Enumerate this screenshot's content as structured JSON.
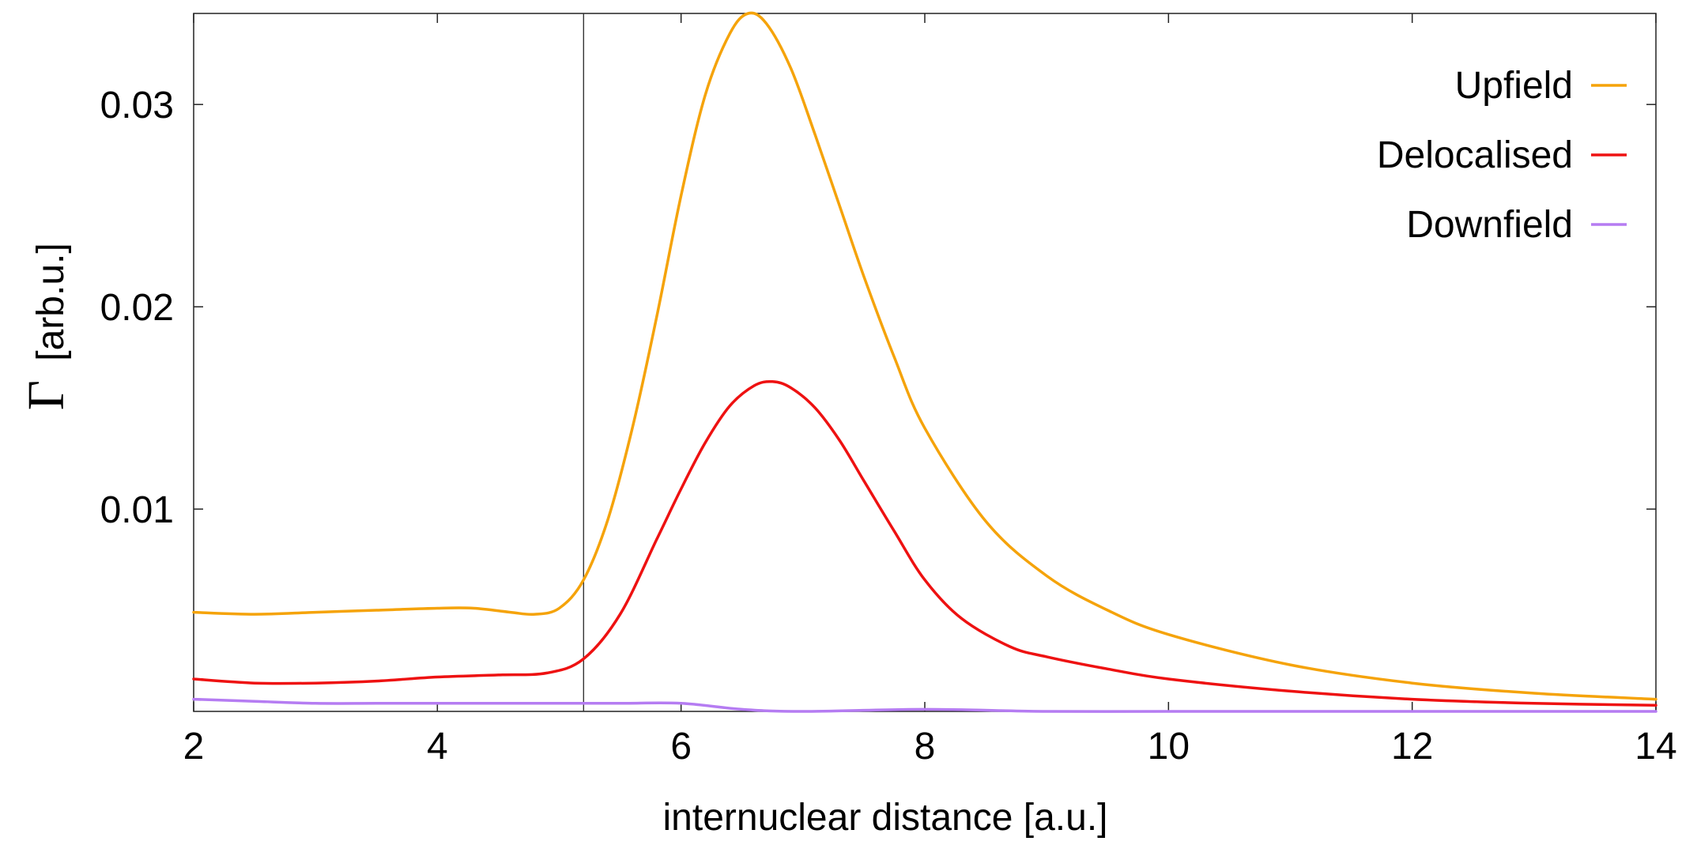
{
  "chart_data": {
    "type": "line",
    "title": "",
    "xlabel": "internuclear distance [a.u.]",
    "ylabel_symbol": "Γ",
    "ylabel_unit": "[arb.u.]",
    "xlim": [
      2,
      14
    ],
    "ylim": [
      0,
      0.0345
    ],
    "xticks": [
      2,
      4,
      6,
      8,
      10,
      12,
      14
    ],
    "yticks": [
      0.01,
      0.02,
      0.03
    ],
    "ytick_labels": [
      "0.01",
      "0.02",
      "0.03"
    ],
    "vline_x": 5.2,
    "grid": false,
    "legend_position": "top-right",
    "series": [
      {
        "name": "Upfield",
        "color": "#f5a30a",
        "x": [
          2,
          2.5,
          3,
          3.5,
          4,
          4.3,
          4.6,
          4.8,
          5.0,
          5.2,
          5.4,
          5.6,
          5.8,
          6.0,
          6.2,
          6.4,
          6.55,
          6.7,
          6.9,
          7.1,
          7.3,
          7.5,
          7.75,
          8.0,
          8.5,
          9.0,
          9.5,
          10,
          11,
          12,
          13,
          14
        ],
        "y": [
          0.0049,
          0.0048,
          0.0049,
          0.005,
          0.0051,
          0.0051,
          0.0049,
          0.0048,
          0.0051,
          0.0065,
          0.0095,
          0.014,
          0.0195,
          0.0255,
          0.0305,
          0.0335,
          0.0345,
          0.034,
          0.0318,
          0.0285,
          0.025,
          0.0215,
          0.0175,
          0.014,
          0.0094,
          0.0067,
          0.005,
          0.0038,
          0.0023,
          0.0014,
          0.0009,
          0.0006
        ]
      },
      {
        "name": "Delocalised",
        "color": "#ee1111",
        "x": [
          2,
          2.5,
          3,
          3.5,
          4,
          4.5,
          4.9,
          5.2,
          5.5,
          5.8,
          6.0,
          6.2,
          6.4,
          6.6,
          6.75,
          6.9,
          7.1,
          7.3,
          7.5,
          7.75,
          8.0,
          8.3,
          8.7,
          9.0,
          9.5,
          10,
          11,
          12,
          13,
          14
        ],
        "y": [
          0.0016,
          0.0014,
          0.0014,
          0.0015,
          0.0017,
          0.0018,
          0.0019,
          0.0026,
          0.0048,
          0.0085,
          0.011,
          0.0133,
          0.0151,
          0.0161,
          0.0163,
          0.016,
          0.015,
          0.0134,
          0.0114,
          0.0089,
          0.0065,
          0.0046,
          0.0032,
          0.0027,
          0.0021,
          0.0016,
          0.001,
          0.0006,
          0.0004,
          0.0003
        ]
      },
      {
        "name": "Downfield",
        "color": "#b57cf2",
        "x": [
          2,
          2.5,
          3,
          3.5,
          4,
          4.5,
          5.0,
          5.5,
          6.0,
          6.5,
          7.0,
          8.0,
          9.0,
          10,
          11,
          12,
          13,
          14
        ],
        "y": [
          0.0006,
          0.0005,
          0.0004,
          0.0004,
          0.0004,
          0.0004,
          0.0004,
          0.0004,
          0.0004,
          0.0001,
          0.0,
          0.0001,
          0.0,
          0.0,
          0.0,
          0.0,
          0.0,
          0.0
        ]
      }
    ]
  }
}
